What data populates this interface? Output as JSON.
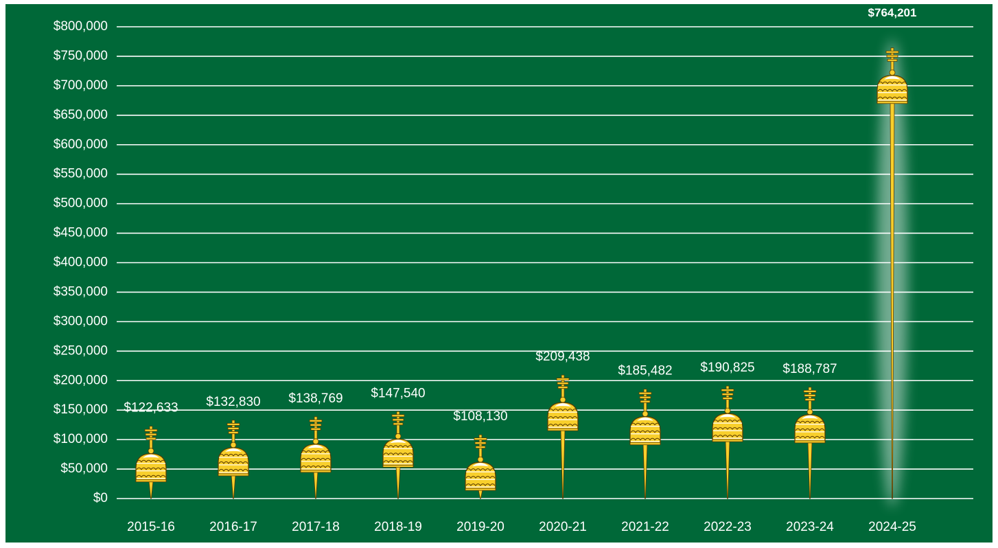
{
  "chart_data": {
    "type": "bar",
    "categories": [
      "2015-16",
      "2016-17",
      "2017-18",
      "2018-19",
      "2019-20",
      "2020-21",
      "2021-22",
      "2022-23",
      "2023-24",
      "2024-25"
    ],
    "values": [
      122633,
      132830,
      138769,
      147540,
      108130,
      209438,
      185482,
      190825,
      188787,
      764201
    ],
    "value_labels": [
      "$122,633",
      "$132,830",
      "$138,769",
      "$147,540",
      "$108,130",
      "$209,438",
      "$185,482",
      "$190,825",
      "$188,787",
      "$764,201"
    ],
    "color": "#f8cf2c",
    "highlight": "2024-25",
    "ylim": [
      0,
      800000
    ],
    "yticks": [
      {
        "value": 0,
        "label": "$0"
      },
      {
        "value": 50000,
        "label": "$50,000"
      },
      {
        "value": 100000,
        "label": "$100,000"
      },
      {
        "value": 150000,
        "label": "$150,000"
      },
      {
        "value": 200000,
        "label": "$200,000"
      },
      {
        "value": 250000,
        "label": "$250,000"
      },
      {
        "value": 300000,
        "label": "$300,000"
      },
      {
        "value": 350000,
        "label": "$350,000"
      },
      {
        "value": 400000,
        "label": "$400,000"
      },
      {
        "value": 450000,
        "label": "$450,000"
      },
      {
        "value": 500000,
        "label": "$500,000"
      },
      {
        "value": 550000,
        "label": "$550,000"
      },
      {
        "value": 600000,
        "label": "$600,000"
      },
      {
        "value": 650000,
        "label": "$650,000"
      },
      {
        "value": 700000,
        "label": "$700,000"
      },
      {
        "value": 750000,
        "label": "$750,000"
      },
      {
        "value": 800000,
        "label": "$800,000"
      }
    ],
    "grid": true
  }
}
